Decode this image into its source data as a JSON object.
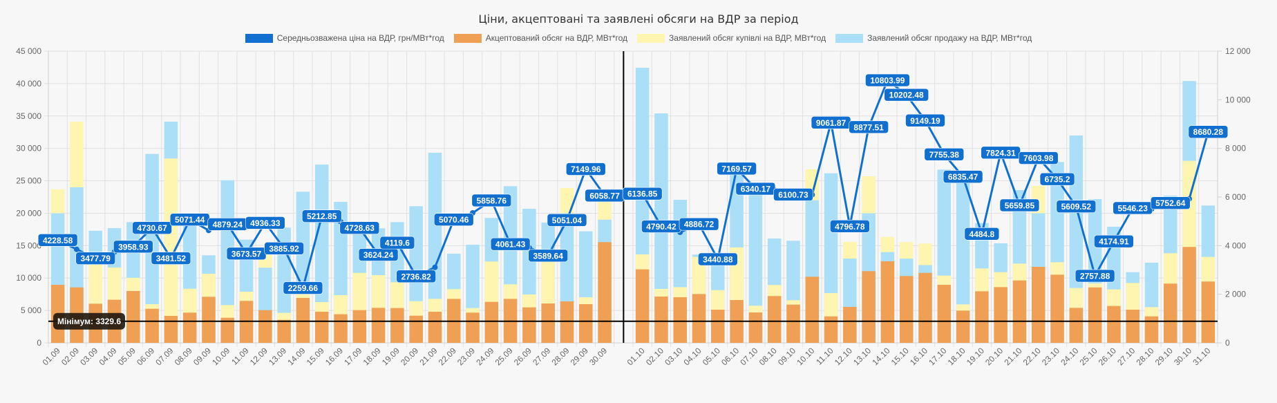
{
  "chart_data": {
    "type": "bar",
    "title": "Ціни, акцептовані та заявлені обсяги на ВДР за період",
    "legend_position": "top",
    "categories": [
      "01.09",
      "02.09",
      "03.09",
      "04.09",
      "05.09",
      "06.09",
      "07.09",
      "08.09",
      "09.09",
      "10.09",
      "11.09",
      "12.09",
      "13.09",
      "14.09",
      "15.09",
      "16.09",
      "17.09",
      "18.09",
      "19.09",
      "20.09",
      "21.09",
      "22.09",
      "23.09",
      "24.09",
      "25.09",
      "26.09",
      "27.09",
      "28.09",
      "29.09",
      "30.09",
      "",
      "01.10",
      "02.10",
      "03.10",
      "04.10",
      "05.10",
      "06.10",
      "07.10",
      "08.10",
      "09.10",
      "10.10",
      "11.10",
      "12.10",
      "13.10",
      "14.10",
      "15.10",
      "16.10",
      "17.10",
      "18.10",
      "19.10",
      "20.10",
      "21.10",
      "22.10",
      "23.10",
      "24.10",
      "25.10",
      "26.10",
      "27.10",
      "28.10",
      "29.10",
      "30.10",
      "31.10"
    ],
    "y_left": {
      "min": 0,
      "max": 45000,
      "step": 5000,
      "ticks": [
        "0",
        "5 000",
        "10 000",
        "15 000",
        "20 000",
        "25 000",
        "30 000",
        "35 000",
        "40 000",
        "45 000"
      ]
    },
    "y_right": {
      "min": 0,
      "max": 12000,
      "step": 2000,
      "ticks": [
        "0",
        "2 000",
        "4 000",
        "6 000",
        "8 000",
        "10 000",
        "12 000"
      ]
    },
    "grid": true,
    "series": [
      {
        "name": "Середньозважена ціна на ВДР, грн/МВт*год",
        "type": "line",
        "axis": "right",
        "color": "#1170cf",
        "values": [
          4228.58,
          3847,
          3477.79,
          3733,
          3958.93,
          4730.67,
          3481.52,
          5071.44,
          4626,
          4879.24,
          3673.57,
          4936.33,
          3885.92,
          2259.66,
          5212.85,
          4985,
          4728.63,
          3624.24,
          4119.6,
          2736.82,
          3108,
          5070.46,
          5346,
          5858.76,
          4061.43,
          3915,
          3589.64,
          5051.04,
          7149.96,
          6058.77,
          null,
          6136.85,
          4790.42,
          4550,
          4886.72,
          3440.88,
          7169.57,
          6340.17,
          6284,
          6100.73,
          6094,
          9061.87,
          4796.78,
          8877.51,
          10803.99,
          10202.48,
          9149.19,
          7755.38,
          6835.47,
          4484.8,
          7824.31,
          5659.85,
          7603.98,
          6735.2,
          5609.52,
          2757.88,
          4174.91,
          5546.23,
          5507,
          5752.64,
          5924,
          8680.28
        ],
        "labels_shown": [
          true,
          false,
          true,
          false,
          true,
          true,
          true,
          true,
          false,
          true,
          true,
          true,
          true,
          true,
          true,
          false,
          true,
          true,
          true,
          true,
          false,
          true,
          false,
          true,
          true,
          false,
          true,
          true,
          true,
          true,
          false,
          true,
          true,
          false,
          true,
          true,
          true,
          true,
          false,
          true,
          false,
          true,
          true,
          true,
          true,
          true,
          true,
          true,
          true,
          true,
          true,
          true,
          true,
          true,
          true,
          true,
          true,
          true,
          false,
          true,
          false,
          true
        ]
      },
      {
        "name": "Акцептований обсяг на ВДР, МВт*год",
        "type": "bar",
        "axis": "left",
        "color": "#efa055",
        "values": [
          8960,
          8560,
          6040,
          6650,
          8000,
          5260,
          4160,
          4660,
          7110,
          3870,
          6470,
          5050,
          3550,
          6930,
          4800,
          4410,
          5050,
          5400,
          5370,
          4190,
          4800,
          6790,
          4660,
          6330,
          6790,
          5470,
          6080,
          6400,
          5970,
          15540,
          null,
          11340,
          7140,
          7040,
          7530,
          5120,
          6610,
          4690,
          7220,
          5900,
          10200,
          4090,
          5550,
          11060,
          12580,
          10310,
          10800,
          8960,
          4980,
          7960,
          8600,
          9630,
          11730,
          10520,
          5400,
          8560,
          5690,
          5120,
          4090,
          9140,
          14790,
          9460
        ]
      },
      {
        "name": "Заявлений обсяг купівлі на ВДР, МВт*год",
        "type": "bar",
        "axis": "left",
        "color": "#fdf5b0",
        "values": [
          23700,
          34120,
          12190,
          11620,
          10030,
          5970,
          28440,
          8350,
          10660,
          5830,
          7890,
          13970,
          4620,
          7570,
          6290,
          7360,
          10800,
          10450,
          9350,
          6430,
          6790,
          8280,
          5370,
          12550,
          9030,
          7460,
          12600,
          23890,
          7040,
          21860,
          null,
          13650,
          8320,
          8600,
          13260,
          8140,
          14720,
          5730,
          8930,
          6580,
          26770,
          7680,
          15570,
          25700,
          16350,
          15540,
          15320,
          10380,
          5940,
          11480,
          10910,
          12230,
          24210,
          12440,
          8460,
          9170,
          8250,
          9240,
          5510,
          13830,
          28080,
          13260
        ]
      },
      {
        "name": "Заявлений обсяг продажу на ВДР, МВт*год",
        "type": "bar",
        "axis": "left",
        "color": "#abdff8",
        "values": [
          20000,
          24000,
          17300,
          17700,
          18630,
          29150,
          34120,
          19000,
          13510,
          25090,
          15920,
          11600,
          17780,
          23320,
          27510,
          21750,
          17600,
          17670,
          18630,
          21080,
          29330,
          13760,
          15140,
          19270,
          24170,
          20690,
          18560,
          20000,
          17200,
          19000,
          null,
          42440,
          35400,
          22070,
          13620,
          13650,
          25880,
          23500,
          16100,
          15750,
          22000,
          26160,
          13000,
          20000,
          14000,
          13000,
          12000,
          26730,
          24740,
          18480,
          15360,
          23570,
          20000,
          27900,
          31990,
          22180,
          17920,
          10910,
          12370,
          22710,
          40390,
          21190
        ]
      }
    ],
    "annotations": [
      {
        "type": "horizontal-line",
        "axis": "left",
        "value": 3329.6,
        "label": "Мінімум: 3329.6",
        "color": "#000000"
      },
      {
        "type": "vertical-line",
        "at_category_index": 30,
        "color": "#000000"
      }
    ]
  },
  "legend": [
    {
      "label": "Середньозважена ціна на ВДР, грн/МВт*год",
      "color": "#1170cf"
    },
    {
      "label": "Акцептований обсяг на ВДР, МВт*год",
      "color": "#efa055"
    },
    {
      "label": "Заявлений обсяг купівлі на ВДР, МВт*год",
      "color": "#fdf5b0"
    },
    {
      "label": "Заявлений обсяг продажу на ВДР, МВт*год",
      "color": "#abdff8"
    }
  ]
}
